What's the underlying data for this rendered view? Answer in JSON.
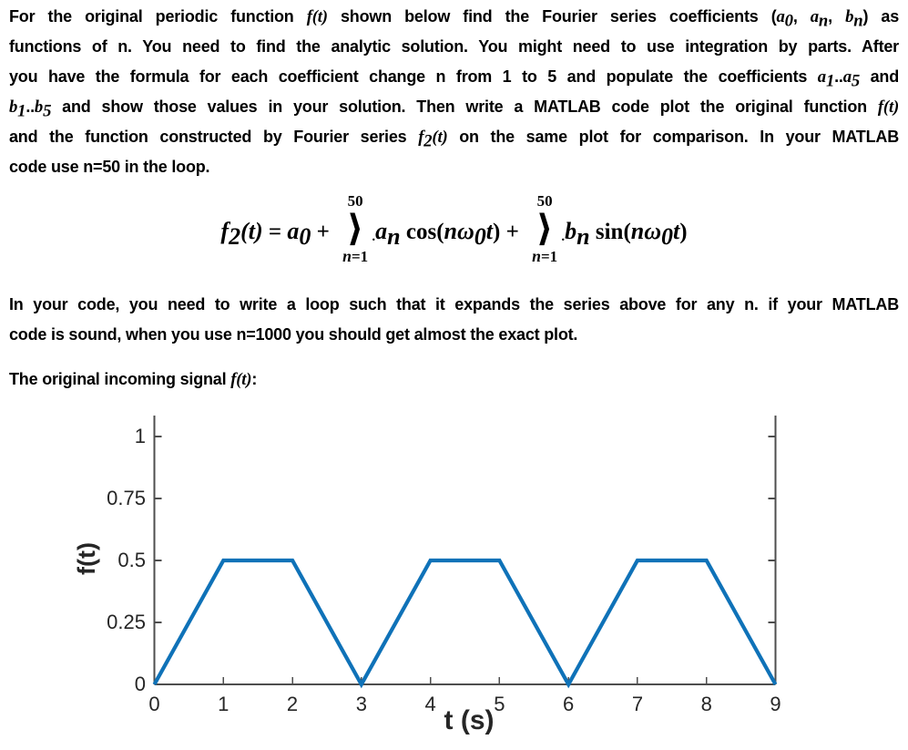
{
  "document": {
    "paragraphs": [
      {
        "name": "instructions-1",
        "lines": [
          {
            "just": true,
            "segs": [
              {
                "t": "For the original periodic function "
              },
              {
                "t": "f(t)",
                "m": 1
              },
              {
                "t": " shown below find the Fourier series coefficients ("
              },
              {
                "t": "a",
                "m": 1
              },
              {
                "t": "0",
                "sub": 1,
                "m": 1
              },
              {
                "t": ", "
              },
              {
                "t": "a",
                "m": 1
              },
              {
                "t": "n",
                "sub": 1,
                "m": 1
              },
              {
                "t": ", "
              },
              {
                "t": "b",
                "m": 1
              },
              {
                "t": "n",
                "sub": 1,
                "m": 1
              },
              {
                "t": ") as"
              }
            ]
          },
          {
            "just": true,
            "segs": [
              {
                "t": "functions of n. You need to find the analytic solution. You might need to use integration by parts. After"
              }
            ]
          },
          {
            "just": true,
            "segs": [
              {
                "t": "you have the formula for each coefficient change n from 1 to 5 and populate the coefficients "
              },
              {
                "t": "a",
                "m": 1
              },
              {
                "t": "1",
                "sub": 1,
                "m": 1
              },
              {
                "t": ".."
              },
              {
                "t": "a",
                "m": 1
              },
              {
                "t": "5",
                "sub": 1,
                "m": 1
              },
              {
                "t": " and"
              }
            ]
          },
          {
            "just": true,
            "segs": [
              {
                "t": "b",
                "m": 1
              },
              {
                "t": "1",
                "sub": 1,
                "m": 1
              },
              {
                "t": ".."
              },
              {
                "t": "b",
                "m": 1
              },
              {
                "t": "5",
                "sub": 1,
                "m": 1
              },
              {
                "t": " and show those values in your solution. Then write a MATLAB code plot the original function "
              },
              {
                "t": "f(t)",
                "m": 1
              }
            ]
          },
          {
            "just": true,
            "segs": [
              {
                "t": "and the function constructed by Fourier series "
              },
              {
                "t": "f",
                "m": 1
              },
              {
                "t": "2",
                "sub": 1,
                "m": 1
              },
              {
                "t": "(t)",
                "m": 1
              },
              {
                "t": " on the same plot for comparison. In your MATLAB"
              }
            ]
          },
          {
            "just": false,
            "segs": [
              {
                "t": "code use n=50 in the loop."
              }
            ]
          }
        ]
      },
      {
        "name": "instructions-2",
        "lines": [
          {
            "just": true,
            "segs": [
              {
                "t": "In your code, you need to write a loop such that it expands the series above for any n. if your MATLAB"
              }
            ]
          },
          {
            "just": false,
            "segs": [
              {
                "t": "code is sound, when you use n=1000 you should get almost the exact plot."
              }
            ]
          }
        ]
      },
      {
        "name": "signal-intro",
        "lines": [
          {
            "just": false,
            "segs": [
              {
                "t": "The original incoming signal "
              },
              {
                "t": "f(t)",
                "m": 1
              },
              {
                "t": ":"
              }
            ]
          }
        ]
      }
    ],
    "formula": {
      "items": [
        {
          "type": "txt",
          "segs": [
            {
              "t": "f",
              "m": 1
            },
            {
              "t": "2",
              "sub": 1,
              "m": 1
            },
            {
              "t": "(t)",
              "m": 1
            },
            {
              "t": " = "
            },
            {
              "t": "a",
              "m": 1
            },
            {
              "t": "0",
              "sub": 1,
              "m": 1
            },
            {
              "t": " + "
            }
          ]
        },
        {
          "type": "sum",
          "upper": "50",
          "glyph": "⟩",
          "dot": ".",
          "lower_segs": [
            {
              "t": "n",
              "m": 1
            },
            {
              "t": "=1"
            }
          ]
        },
        {
          "type": "txt",
          "segs": [
            {
              "t": "a",
              "m": 1
            },
            {
              "t": "n",
              "sub": 1,
              "m": 1
            },
            {
              "t": " cos("
            },
            {
              "t": "nω",
              "m": 1
            },
            {
              "t": "0",
              "sub": 1,
              "m": 1
            },
            {
              "t": "t",
              "m": 1
            },
            {
              "t": ") + "
            }
          ]
        },
        {
          "type": "sum",
          "upper": "50",
          "glyph": "⟩",
          "dot": ".",
          "lower_segs": [
            {
              "t": "n",
              "m": 1
            },
            {
              "t": "=1"
            }
          ]
        },
        {
          "type": "txt",
          "segs": [
            {
              "t": "b",
              "m": 1
            },
            {
              "t": "n",
              "sub": 1,
              "m": 1
            },
            {
              "t": " sin("
            },
            {
              "t": "nω",
              "m": 1
            },
            {
              "t": "0",
              "sub": 1,
              "m": 1
            },
            {
              "t": "t",
              "m": 1
            },
            {
              "t": ")"
            }
          ]
        }
      ]
    }
  },
  "chart_data": {
    "type": "line",
    "title": "",
    "xlabel": "t (s)",
    "ylabel": "f(t)",
    "xlim": [
      0,
      9
    ],
    "ylim": [
      0,
      1.09
    ],
    "xticks": [
      0,
      1,
      2,
      3,
      4,
      5,
      6,
      7,
      8,
      9
    ],
    "xtick_labels": [
      "0",
      "1",
      "2",
      "3",
      "4",
      "5",
      "6",
      "7",
      "8",
      "9"
    ],
    "yticks": [
      0,
      0.25,
      0.5,
      0.75,
      1
    ],
    "ytick_labels": [
      "0",
      "0.25",
      "0.5",
      "0.75",
      "1"
    ],
    "grid": false,
    "box": "left, right and bottom spines; top cropped",
    "legend": null,
    "line_color": "#0f72b8",
    "axis_color": "#4e4e4e",
    "label_color": "#262626",
    "line_width": 4.2,
    "series": [
      {
        "name": "f(t) trapezoidal periodic signal, period 3 s",
        "x": [
          0,
          1,
          2,
          3,
          4,
          5,
          6,
          7,
          8,
          9
        ],
        "y": [
          0,
          0.5,
          0.5,
          0,
          0.5,
          0.5,
          0,
          0.5,
          0.5,
          0
        ]
      }
    ]
  }
}
